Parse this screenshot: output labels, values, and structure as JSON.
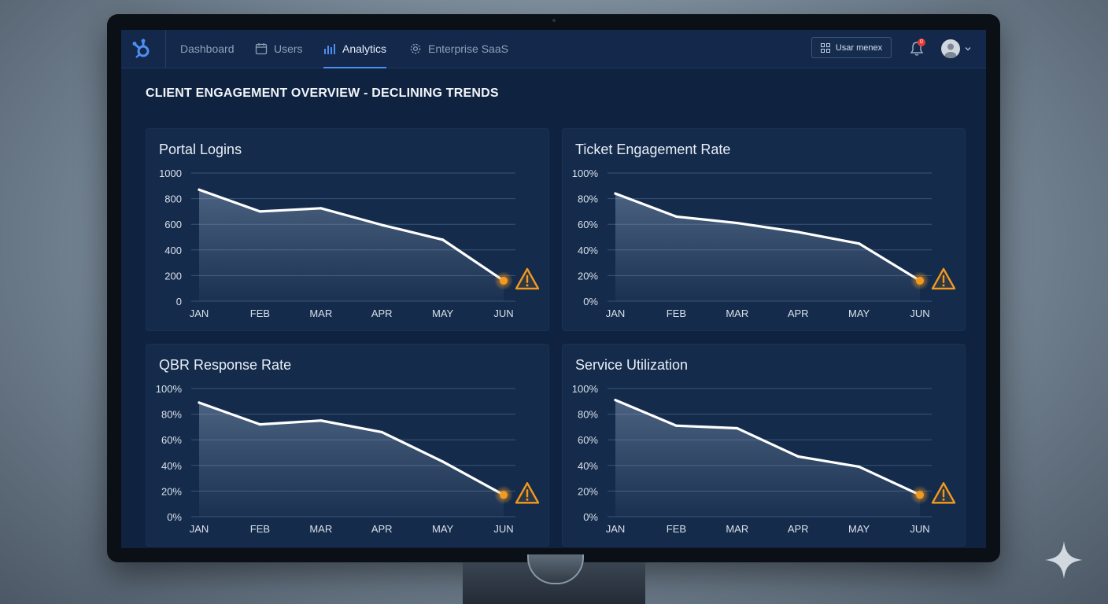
{
  "nav": {
    "items": [
      {
        "label": "Dashboard",
        "icon": "none",
        "active": false
      },
      {
        "label": "Users",
        "icon": "calendar-icon",
        "active": false
      },
      {
        "label": "Analytics",
        "icon": "bar-chart-icon",
        "active": true
      },
      {
        "label": "Enterprise SaaS",
        "icon": "gear-icon",
        "active": false
      }
    ],
    "user_menu_label": "Usar menex",
    "notification_count": "0"
  },
  "page": {
    "title": "CLIENT ENGAGEMENT OVERVIEW - DECLINING TRENDS"
  },
  "colors": {
    "accent": "#4d8ef0",
    "warning": "#f29a1f",
    "line": "#ffffff",
    "card_bg": "#142b4b"
  },
  "chart_data": [
    {
      "type": "area",
      "title": "Portal Logins",
      "categories": [
        "JAN",
        "FEB",
        "MAR",
        "APR",
        "MAY",
        "JUN"
      ],
      "values": [
        870,
        700,
        725,
        595,
        480,
        160
      ],
      "ylim": [
        0,
        1000
      ],
      "yticks": [
        "0",
        "200",
        "400",
        "600",
        "800",
        "1000"
      ],
      "grid": true,
      "warning_on_last": true
    },
    {
      "type": "area",
      "title": "Ticket Engagement Rate",
      "categories": [
        "JAN",
        "FEB",
        "MAR",
        "APR",
        "MAY",
        "JUN"
      ],
      "values": [
        84,
        66,
        61,
        54,
        45,
        16
      ],
      "ylim": [
        0,
        100
      ],
      "yticks": [
        "0%",
        "20%",
        "40%",
        "60%",
        "80%",
        "100%"
      ],
      "grid": true,
      "warning_on_last": true
    },
    {
      "type": "area",
      "title": "QBR Response Rate",
      "categories": [
        "JAN",
        "FEB",
        "MAR",
        "APR",
        "MAY",
        "JUN"
      ],
      "values": [
        89,
        72,
        75,
        66,
        43,
        17
      ],
      "ylim": [
        0,
        100
      ],
      "yticks": [
        "0%",
        "20%",
        "40%",
        "60%",
        "80%",
        "100%"
      ],
      "grid": true,
      "warning_on_last": true
    },
    {
      "type": "area",
      "title": "Service Utilization",
      "categories": [
        "JAN",
        "FEB",
        "MAR",
        "APR",
        "MAY",
        "JUN"
      ],
      "values": [
        91,
        71,
        69,
        47,
        39,
        17
      ],
      "ylim": [
        0,
        100
      ],
      "yticks": [
        "0%",
        "20%",
        "40%",
        "60%",
        "80%",
        "100%"
      ],
      "grid": true,
      "warning_on_last": true
    }
  ]
}
